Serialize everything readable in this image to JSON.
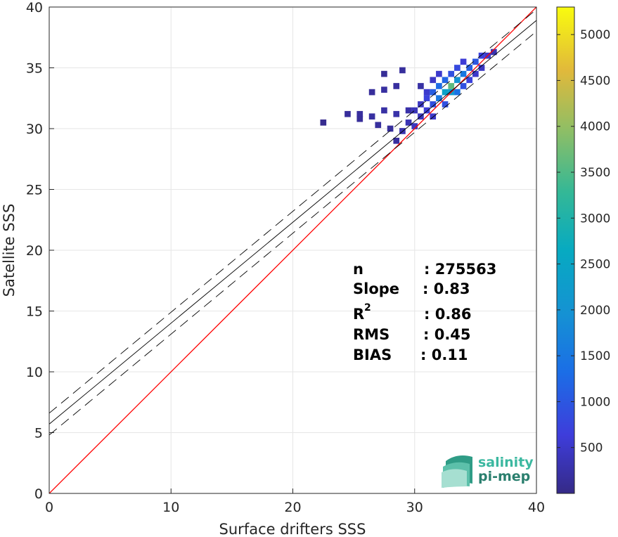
{
  "chart_data": {
    "type": "heatmap",
    "title": "",
    "xlabel": "Surface drifters SSS",
    "ylabel": "Satellite SSS",
    "xlim": [
      0,
      40
    ],
    "ylim": [
      0,
      40
    ],
    "x_ticks": [
      "0",
      "10",
      "20",
      "30",
      "40"
    ],
    "y_ticks": [
      "0",
      "5",
      "10",
      "15",
      "20",
      "25",
      "30",
      "35",
      "40"
    ],
    "grid": true,
    "colorbar": {
      "range": [
        0,
        5300
      ],
      "ticks": [
        "500",
        "1000",
        "1500",
        "2000",
        "2500",
        "3000",
        "3500",
        "4000",
        "4500",
        "5000"
      ],
      "colormap": "parula"
    },
    "identity_line": {
      "x": [
        0,
        40
      ],
      "y": [
        0,
        40
      ],
      "color": "#ff0000"
    },
    "fit_line": {
      "slope": 0.83,
      "intercept": 5.7,
      "color": "#000000"
    },
    "fit_bounds": {
      "offset": 0.9,
      "style": "dashed",
      "color": "#000000"
    },
    "density_cells": [
      {
        "x": 22.5,
        "y": 30.5,
        "count": 60
      },
      {
        "x": 24.5,
        "y": 31.2,
        "count": 150
      },
      {
        "x": 25.5,
        "y": 31.2,
        "count": 180
      },
      {
        "x": 25.5,
        "y": 30.8,
        "count": 140
      },
      {
        "x": 26.5,
        "y": 31.0,
        "count": 200
      },
      {
        "x": 27.0,
        "y": 30.3,
        "count": 170
      },
      {
        "x": 27.5,
        "y": 31.5,
        "count": 220
      },
      {
        "x": 28.0,
        "y": 30.0,
        "count": 160
      },
      {
        "x": 28.5,
        "y": 31.2,
        "count": 260
      },
      {
        "x": 28.5,
        "y": 29.0,
        "count": 180
      },
      {
        "x": 29.0,
        "y": 29.8,
        "count": 300
      },
      {
        "x": 29.5,
        "y": 30.5,
        "count": 340
      },
      {
        "x": 29.5,
        "y": 31.5,
        "count": 250
      },
      {
        "x": 30.0,
        "y": 30.2,
        "count": 420
      },
      {
        "x": 30.0,
        "y": 31.5,
        "count": 380
      },
      {
        "x": 30.5,
        "y": 32.0,
        "count": 450
      },
      {
        "x": 30.5,
        "y": 33.5,
        "count": 220
      },
      {
        "x": 31.0,
        "y": 31.5,
        "count": 600
      },
      {
        "x": 31.0,
        "y": 32.5,
        "count": 700
      },
      {
        "x": 31.0,
        "y": 33.0,
        "count": 520
      },
      {
        "x": 31.5,
        "y": 32.0,
        "count": 900
      },
      {
        "x": 31.5,
        "y": 33.0,
        "count": 1100
      },
      {
        "x": 31.5,
        "y": 34.0,
        "count": 480
      },
      {
        "x": 32.0,
        "y": 32.5,
        "count": 1500
      },
      {
        "x": 32.0,
        "y": 33.5,
        "count": 1300
      },
      {
        "x": 32.0,
        "y": 34.5,
        "count": 520
      },
      {
        "x": 32.5,
        "y": 33.0,
        "count": 2400
      },
      {
        "x": 32.5,
        "y": 34.0,
        "count": 1200
      },
      {
        "x": 32.5,
        "y": 32.0,
        "count": 900
      },
      {
        "x": 33.0,
        "y": 33.5,
        "count": 3600
      },
      {
        "x": 33.0,
        "y": 33.0,
        "count": 2200
      },
      {
        "x": 33.0,
        "y": 34.5,
        "count": 900
      },
      {
        "x": 33.5,
        "y": 34.0,
        "count": 2000
      },
      {
        "x": 33.5,
        "y": 33.0,
        "count": 1400
      },
      {
        "x": 33.5,
        "y": 35.0,
        "count": 800
      },
      {
        "x": 34.0,
        "y": 34.5,
        "count": 1500
      },
      {
        "x": 34.0,
        "y": 33.5,
        "count": 900
      },
      {
        "x": 34.0,
        "y": 35.5,
        "count": 600
      },
      {
        "x": 34.5,
        "y": 35.0,
        "count": 1100
      },
      {
        "x": 34.5,
        "y": 34.0,
        "count": 700
      },
      {
        "x": 35.0,
        "y": 35.5,
        "count": 1000
      },
      {
        "x": 35.0,
        "y": 34.5,
        "count": 500
      },
      {
        "x": 35.5,
        "y": 36.0,
        "count": 700
      },
      {
        "x": 35.5,
        "y": 35.0,
        "count": 450
      },
      {
        "x": 36.0,
        "y": 36.0,
        "count": 500
      },
      {
        "x": 36.5,
        "y": 36.3,
        "count": 300
      },
      {
        "x": 31.5,
        "y": 31.0,
        "count": 500
      },
      {
        "x": 30.5,
        "y": 31.0,
        "count": 400
      },
      {
        "x": 28.5,
        "y": 33.5,
        "count": 180
      },
      {
        "x": 27.5,
        "y": 34.5,
        "count": 120
      },
      {
        "x": 26.5,
        "y": 33.0,
        "count": 150
      },
      {
        "x": 27.5,
        "y": 33.2,
        "count": 200
      },
      {
        "x": 29.0,
        "y": 34.8,
        "count": 160
      }
    ],
    "stats": {
      "n": {
        "label": "n",
        "value": ": 275563"
      },
      "slope": {
        "label": "Slope",
        "value": ": 0.83"
      },
      "r2": {
        "label": "R",
        "sup": "2",
        "value": ": 0.86"
      },
      "rms": {
        "label": "RMS",
        "value": ": 0.45"
      },
      "bias": {
        "label": "BIAS",
        "value": ": 0.11"
      }
    }
  },
  "logo": {
    "line1": "salinity",
    "line2": "pi-mep",
    "color1": "#3bb8a0",
    "color2": "#2a7f6e"
  }
}
